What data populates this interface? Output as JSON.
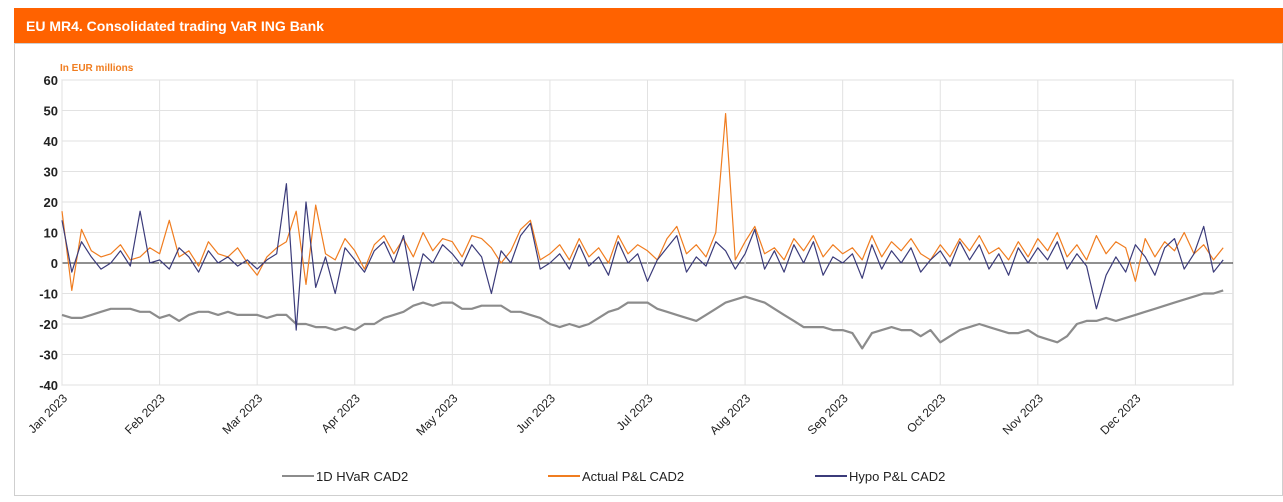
{
  "chart_data": {
    "type": "line",
    "title": "EU MR4. Consolidated trading VaR ING Bank",
    "y_label": "In EUR millions",
    "ylim": [
      -40,
      60
    ],
    "yticks": [
      -40,
      -30,
      -20,
      -10,
      0,
      10,
      20,
      30,
      40,
      50,
      60
    ],
    "grid": true,
    "legend": "bottom",
    "categories": [
      "Jan 2023",
      null,
      null,
      null,
      null,
      null,
      null,
      null,
      null,
      null,
      "Feb 2023",
      null,
      null,
      null,
      null,
      null,
      null,
      null,
      null,
      null,
      "Mar 2023",
      null,
      null,
      null,
      null,
      null,
      null,
      null,
      null,
      null,
      "Apr 2023",
      null,
      null,
      null,
      null,
      null,
      null,
      null,
      null,
      null,
      "May 2023",
      null,
      null,
      null,
      null,
      null,
      null,
      null,
      null,
      null,
      "Jun 2023",
      null,
      null,
      null,
      null,
      null,
      null,
      null,
      null,
      null,
      "Jul 2023",
      null,
      null,
      null,
      null,
      null,
      null,
      null,
      null,
      null,
      "Aug 2023",
      null,
      null,
      null,
      null,
      null,
      null,
      null,
      null,
      null,
      "Sep 2023",
      null,
      null,
      null,
      null,
      null,
      null,
      null,
      null,
      null,
      "Oct 2023",
      null,
      null,
      null,
      null,
      null,
      null,
      null,
      null,
      null,
      "Nov 2023",
      null,
      null,
      null,
      null,
      null,
      null,
      null,
      null,
      null,
      "Dec 2023",
      null,
      null,
      null,
      null,
      null,
      null,
      null,
      null,
      null
    ],
    "series": [
      {
        "name": "1D HVaR CAD2",
        "color": "#8c8c8c",
        "width": 2.2,
        "values": [
          -17,
          -18,
          -18,
          -17,
          -16,
          -15,
          -15,
          -15,
          -16,
          -16,
          -18,
          -17,
          -19,
          -17,
          -16,
          -16,
          -17,
          -16,
          -17,
          -17,
          -17,
          -18,
          -17,
          -17,
          -20,
          -20,
          -21,
          -21,
          -22,
          -21,
          -22,
          -20,
          -20,
          -18,
          -17,
          -16,
          -14,
          -13,
          -14,
          -13,
          -13,
          -15,
          -15,
          -14,
          -14,
          -14,
          -16,
          -16,
          -17,
          -18,
          -20,
          -21,
          -20,
          -21,
          -20,
          -18,
          -16,
          -15,
          -13,
          -13,
          -13,
          -15,
          -16,
          -17,
          -18,
          -19,
          -17,
          -15,
          -13,
          -12,
          -11,
          -12,
          -13,
          -15,
          -17,
          -19,
          -21,
          -21,
          -21,
          -22,
          -22,
          -23,
          -28,
          -23,
          -22,
          -21,
          -22,
          -22,
          -24,
          -22,
          -26,
          -24,
          -22,
          -21,
          -20,
          -21,
          -22,
          -23,
          -23,
          -22,
          -24,
          -25,
          -26,
          -24,
          -20,
          -19,
          -19,
          -18,
          -19,
          -18,
          -17,
          -16,
          -15,
          -14,
          -13,
          -12,
          -11,
          -10,
          -10,
          -9
        ]
      },
      {
        "name": "Actual P&L CAD2",
        "color": "#f07d20",
        "width": 1.2,
        "values": [
          17,
          -9,
          11,
          4,
          2,
          3,
          6,
          1,
          2,
          5,
          3,
          14,
          2,
          4,
          -1,
          7,
          3,
          2,
          5,
          0,
          -4,
          2,
          5,
          7,
          17,
          -7,
          19,
          3,
          1,
          8,
          4,
          -2,
          6,
          9,
          3,
          8,
          2,
          10,
          4,
          8,
          7,
          2,
          9,
          8,
          5,
          0,
          4,
          11,
          14,
          1,
          3,
          6,
          1,
          8,
          2,
          5,
          0,
          9,
          3,
          6,
          4,
          1,
          8,
          12,
          3,
          6,
          2,
          10,
          49,
          1,
          7,
          12,
          3,
          5,
          1,
          8,
          4,
          9,
          2,
          6,
          3,
          5,
          1,
          9,
          2,
          7,
          4,
          8,
          3,
          1,
          6,
          2,
          8,
          4,
          9,
          3,
          5,
          1,
          7,
          2,
          8,
          4,
          10,
          2,
          6,
          1,
          9,
          3,
          7,
          5,
          -6,
          8,
          2,
          7,
          4,
          10,
          3,
          6,
          1,
          5
        ]
      },
      {
        "name": "Hypo P&L CAD2",
        "color": "#3b3b7a",
        "width": 1.2,
        "values": [
          14,
          -3,
          7,
          2,
          -2,
          0,
          4,
          -1,
          17,
          0,
          1,
          -2,
          5,
          2,
          -3,
          4,
          0,
          2,
          -1,
          1,
          -2,
          1,
          3,
          26,
          -22,
          20,
          -8,
          2,
          -10,
          5,
          1,
          -3,
          4,
          7,
          0,
          9,
          -9,
          3,
          0,
          6,
          3,
          -1,
          6,
          2,
          -10,
          4,
          0,
          9,
          13,
          -2,
          0,
          3,
          -2,
          6,
          -1,
          2,
          -4,
          7,
          0,
          3,
          -6,
          1,
          5,
          9,
          -3,
          2,
          -1,
          7,
          4,
          -2,
          3,
          11,
          -2,
          4,
          -3,
          6,
          0,
          7,
          -4,
          2,
          0,
          3,
          -5,
          6,
          -2,
          4,
          0,
          5,
          -3,
          1,
          4,
          -1,
          7,
          1,
          6,
          -2,
          3,
          -4,
          5,
          0,
          5,
          1,
          7,
          -2,
          3,
          -1,
          -15,
          -4,
          2,
          -3,
          6,
          2,
          -4,
          5,
          8,
          -2,
          3,
          12,
          -3,
          1
        ]
      }
    ]
  }
}
